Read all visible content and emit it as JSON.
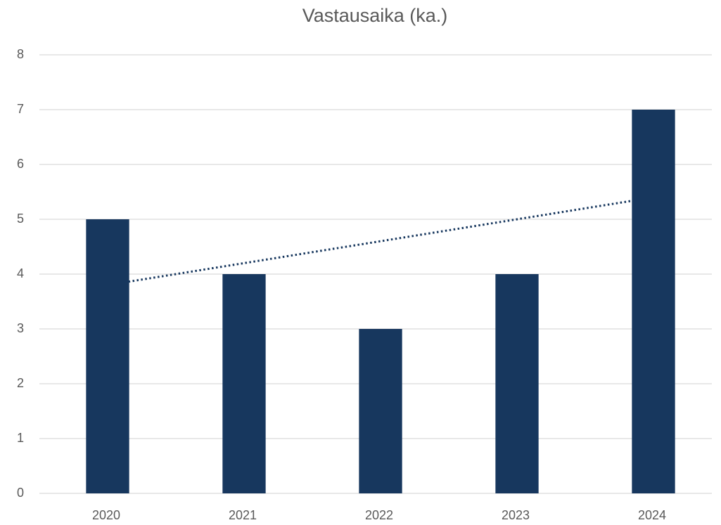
{
  "chart_data": {
    "type": "bar",
    "title": "Vastausaika (ka.)",
    "categories": [
      "2020",
      "2021",
      "2022",
      "2023",
      "2024"
    ],
    "values": [
      5,
      4,
      3,
      4,
      7
    ],
    "color": "#17375e",
    "ylim": [
      0,
      8
    ],
    "yticks": [
      0,
      1,
      2,
      3,
      4,
      5,
      6,
      7,
      8
    ],
    "grid": true,
    "trendline": "linear",
    "trendline_color": "#17375e"
  }
}
